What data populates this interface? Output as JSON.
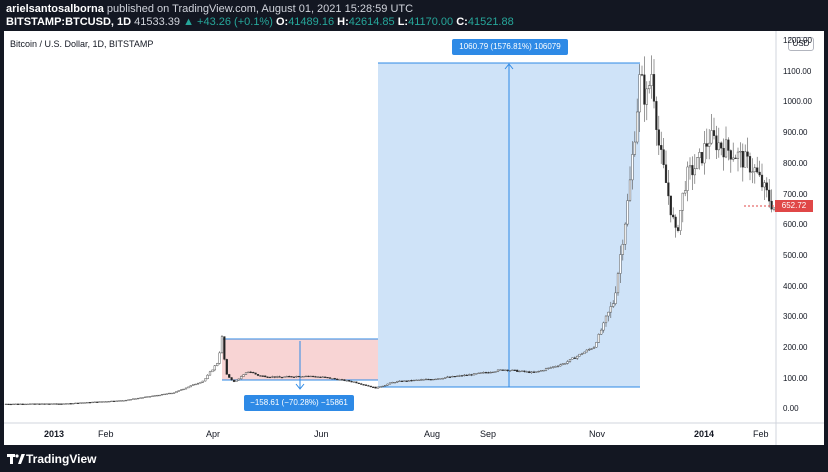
{
  "header": {
    "author": "arielsantosalborna",
    "published_text": "published on TradingView.com, August 01, 2021 15:28:59 UTC",
    "symbol": "BITSTAMP:BTCUSD, 1D",
    "last": "41533.39",
    "change_arrow": "▲",
    "change": "+43.26 (+0.1%)",
    "o_label": "O:",
    "o_value": "41489.16",
    "h_label": "H:",
    "h_value": "42614.85",
    "l_label": "L:",
    "l_value": "41170.00",
    "c_label": "C:",
    "c_value": "41521.88"
  },
  "chart": {
    "title": "Bitcoin / U.S. Dollar, 1D, BITSTAMP",
    "currency_button": "USD",
    "last_price_label": "652.72",
    "price_axis": [
      "1200.00",
      "1100.00",
      "1000.00",
      "900.00",
      "800.00",
      "700.00",
      "600.00",
      "500.00",
      "400.00",
      "300.00",
      "200.00",
      "100.00",
      "0.00"
    ],
    "time_axis": [
      {
        "label": "2013",
        "bold": true
      },
      {
        "label": "Feb",
        "bold": false
      },
      {
        "label": "Apr",
        "bold": false
      },
      {
        "label": "Jun",
        "bold": false
      },
      {
        "label": "Aug",
        "bold": false
      },
      {
        "label": "Sep",
        "bold": false
      },
      {
        "label": "Nov",
        "bold": false
      },
      {
        "label": "2014",
        "bold": true
      },
      {
        "label": "Feb",
        "bold": false
      }
    ],
    "measure_down_label": "−158.61 (−70.28%) −15861",
    "measure_up_label": "1060.79 (1576.81%) 106079",
    "colors": {
      "up_candle": "#ffffff",
      "down_candle": "#000000",
      "decline_zone": "#f8d4d4",
      "rise_zone": "#cfe3f8",
      "measure_line": "#2e8ae6",
      "last_price_badge": "#e04747"
    }
  },
  "footer": {
    "brand": "TradingView"
  },
  "chart_data": {
    "type": "candlestick",
    "title": "Bitcoin / U.S. Dollar, 1D, BITSTAMP",
    "x": [
      "2013-01",
      "2013-02",
      "2013-03",
      "2013-04",
      "2013-05",
      "2013-06",
      "2013-07",
      "2013-08",
      "2013-09",
      "2013-10",
      "2013-11",
      "2013-12",
      "2014-01",
      "2014-02"
    ],
    "y": [
      13,
      25,
      75,
      130,
      120,
      105,
      85,
      100,
      125,
      150,
      800,
      750,
      840,
      650
    ],
    "ylim": [
      0,
      1200
    ],
    "annotations": [
      {
        "label": "−158.61 (−70.28%) −15861",
        "from": 230,
        "to": 68
      },
      {
        "label": "1060.79 (1576.81%) 106079",
        "from": 67,
        "to": 1128
      }
    ]
  }
}
